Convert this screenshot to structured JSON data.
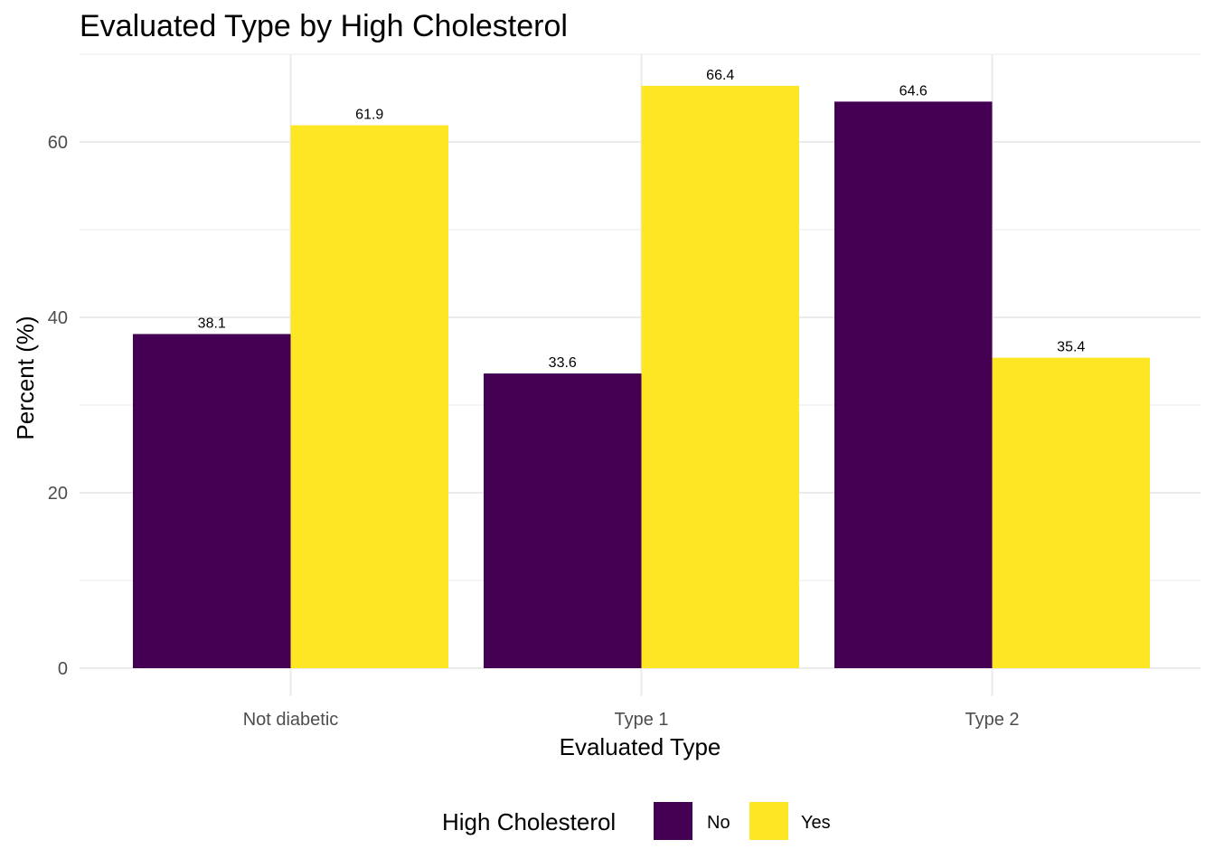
{
  "chart_data": {
    "type": "bar",
    "title": "Evaluated Type by High Cholesterol",
    "xlabel": "Evaluated Type",
    "ylabel": "Percent (%)",
    "categories": [
      "Not diabetic",
      "Type 1",
      "Type 2"
    ],
    "series": [
      {
        "name": "No",
        "color": "#440154",
        "values": [
          38.1,
          33.6,
          64.6
        ],
        "labels": [
          "38.1",
          "33.6",
          "64.6"
        ]
      },
      {
        "name": "Yes",
        "color": "#FDE725",
        "values": [
          61.9,
          66.4,
          35.4
        ],
        "labels": [
          "61.9",
          "66.4",
          "35.4"
        ]
      }
    ],
    "ylim": [
      0,
      70
    ],
    "yticks": [
      0,
      20,
      40,
      60
    ],
    "yticks_labels": [
      "0",
      "20",
      "40",
      "60"
    ],
    "grid": true,
    "legend": {
      "title": "High Cholesterol",
      "position": "bottom"
    }
  }
}
